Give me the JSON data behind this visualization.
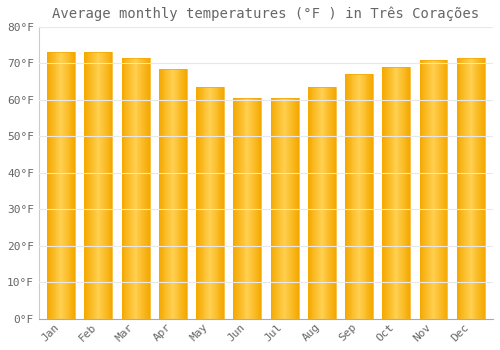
{
  "title": "Average monthly temperatures (°F ) in Três Corações",
  "months": [
    "Jan",
    "Feb",
    "Mar",
    "Apr",
    "May",
    "Jun",
    "Jul",
    "Aug",
    "Sep",
    "Oct",
    "Nov",
    "Dec"
  ],
  "values": [
    73,
    73,
    71.5,
    68.5,
    63.5,
    60.5,
    60.5,
    63.5,
    67,
    69,
    71,
    71.5
  ],
  "bar_color_main": "#F5A800",
  "bar_color_light": "#FFD050",
  "background_color": "#FFFFFF",
  "grid_color": "#E8E8E8",
  "ylim": [
    0,
    80
  ],
  "yticks": [
    0,
    10,
    20,
    30,
    40,
    50,
    60,
    70,
    80
  ],
  "ytick_labels": [
    "0°F",
    "10°F",
    "20°F",
    "30°F",
    "40°F",
    "50°F",
    "60°F",
    "70°F",
    "80°F"
  ],
  "title_fontsize": 10,
  "tick_fontsize": 8,
  "font_color": "#666666",
  "bar_width": 0.75
}
